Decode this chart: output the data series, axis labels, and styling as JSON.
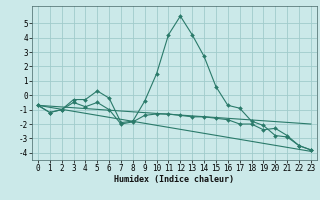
{
  "xlabel": "Humidex (Indice chaleur)",
  "xlim": [
    -0.5,
    23.5
  ],
  "ylim": [
    -4.5,
    6.2
  ],
  "yticks": [
    -4,
    -3,
    -2,
    -1,
    0,
    1,
    2,
    3,
    4,
    5
  ],
  "xticks": [
    0,
    1,
    2,
    3,
    4,
    5,
    6,
    7,
    8,
    9,
    10,
    11,
    12,
    13,
    14,
    15,
    16,
    17,
    18,
    19,
    20,
    21,
    22,
    23
  ],
  "background_color": "#cbe9e9",
  "grid_color": "#a0cccc",
  "line_color": "#2a7a6a",
  "lines": [
    {
      "x": [
        0,
        1,
        2,
        3,
        4,
        5,
        6,
        7,
        8,
        9,
        10,
        11,
        12,
        13,
        14,
        15,
        16,
        17,
        18,
        19,
        20,
        21,
        22,
        23
      ],
      "y": [
        -0.7,
        -1.2,
        -1.0,
        -0.3,
        -0.3,
        0.3,
        -0.2,
        -1.9,
        -1.8,
        -0.4,
        1.5,
        4.2,
        5.5,
        4.2,
        2.7,
        0.6,
        -0.7,
        -0.9,
        -1.8,
        -2.1,
        -2.8,
        -2.9,
        -3.5,
        -3.8
      ],
      "with_markers": true
    },
    {
      "x": [
        0,
        1,
        2,
        3,
        4,
        5,
        6,
        7,
        8,
        9,
        10,
        11,
        12,
        13,
        14,
        15,
        16,
        17,
        18,
        19,
        20,
        21,
        22,
        23
      ],
      "y": [
        -0.7,
        -1.2,
        -1.0,
        -0.5,
        -0.8,
        -0.5,
        -1.0,
        -2.0,
        -1.85,
        -1.4,
        -1.3,
        -1.3,
        -1.4,
        -1.5,
        -1.5,
        -1.6,
        -1.7,
        -2.0,
        -2.0,
        -2.4,
        -2.3,
        -2.8,
        -3.5,
        -3.8
      ],
      "with_markers": true
    },
    {
      "x": [
        0,
        23
      ],
      "y": [
        -0.7,
        -3.9
      ],
      "with_markers": false
    },
    {
      "x": [
        0,
        23
      ],
      "y": [
        -0.7,
        -2.0
      ],
      "with_markers": false
    }
  ]
}
